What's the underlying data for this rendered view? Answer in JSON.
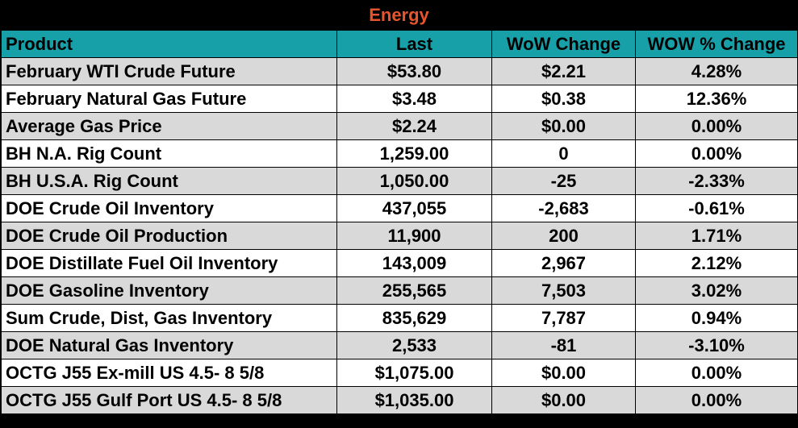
{
  "title": "Energy",
  "colors": {
    "title_text": "#E8552D",
    "header_bg": "#17A0A8",
    "row_shaded": "#D9D9D9",
    "row_plain": "#FFFFFF",
    "background": "#000000"
  },
  "table": {
    "headers": {
      "product": "Product",
      "last": "Last",
      "wow_change": "WoW Change",
      "wow_pct_change": "WOW % Change"
    },
    "rows": [
      {
        "product": "February WTI Crude Future",
        "last": "$53.80",
        "wow_change": "$2.21",
        "wow_pct_change": "4.28%"
      },
      {
        "product": "February Natural Gas Future",
        "last": "$3.48",
        "wow_change": "$0.38",
        "wow_pct_change": "12.36%"
      },
      {
        "product": "Average Gas Price",
        "last": "$2.24",
        "wow_change": "$0.00",
        "wow_pct_change": "0.00%"
      },
      {
        "product": "BH N.A. Rig Count",
        "last": "1,259.00",
        "wow_change": "0",
        "wow_pct_change": "0.00%"
      },
      {
        "product": "BH U.S.A. Rig Count",
        "last": "1,050.00",
        "wow_change": "-25",
        "wow_pct_change": "-2.33%"
      },
      {
        "product": "DOE Crude Oil Inventory",
        "last": "437,055",
        "wow_change": "-2,683",
        "wow_pct_change": "-0.61%"
      },
      {
        "product": "DOE Crude Oil Production",
        "last": "11,900",
        "wow_change": "200",
        "wow_pct_change": "1.71%"
      },
      {
        "product": "DOE Distillate Fuel Oil Inventory",
        "last": "143,009",
        "wow_change": "2,967",
        "wow_pct_change": "2.12%"
      },
      {
        "product": "DOE Gasoline Inventory",
        "last": "255,565",
        "wow_change": "7,503",
        "wow_pct_change": "3.02%"
      },
      {
        "product": "Sum Crude, Dist, Gas Inventory",
        "last": "835,629",
        "wow_change": "7,787",
        "wow_pct_change": "0.94%"
      },
      {
        "product": "DOE Natural Gas Inventory",
        "last": "2,533",
        "wow_change": "-81",
        "wow_pct_change": "-3.10%"
      },
      {
        "product": "OCTG J55 Ex-mill US 4.5- 8 5/8",
        "last": "$1,075.00",
        "wow_change": "$0.00",
        "wow_pct_change": "0.00%"
      },
      {
        "product": "OCTG J55 Gulf Port US 4.5- 8 5/8",
        "last": "$1,035.00",
        "wow_change": "$0.00",
        "wow_pct_change": "0.00%"
      }
    ]
  }
}
